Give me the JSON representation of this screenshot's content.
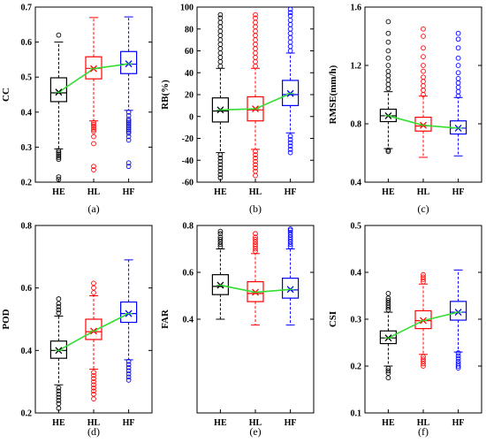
{
  "colors": {
    "HE": "#000000",
    "HL": "#ff0000",
    "HF": "#0000ff",
    "mean_line": "#33dd33"
  },
  "chart_data": [
    {
      "type": "box",
      "caption": "(a)",
      "ylabel": "CC",
      "ylim": [
        0.2,
        0.7
      ],
      "yticks": [
        "0.2",
        "0.3",
        "0.4",
        "0.5",
        "0.6",
        "0.7"
      ],
      "categories": [
        "HE",
        "HL",
        "HF"
      ],
      "means": [
        0.457,
        0.524,
        0.538
      ],
      "boxes": [
        {
          "min": 0.295,
          "q1": 0.43,
          "median": 0.455,
          "q3": 0.498,
          "max": 0.6,
          "outliers": [
            0.62,
            0.29,
            0.285,
            0.28,
            0.275,
            0.27,
            0.265,
            0.215,
            0.208
          ]
        },
        {
          "min": 0.375,
          "q1": 0.495,
          "median": 0.525,
          "q3": 0.558,
          "max": 0.67,
          "outliers": [
            0.37,
            0.365,
            0.36,
            0.355,
            0.35,
            0.345,
            0.33,
            0.31,
            0.245,
            0.235
          ]
        },
        {
          "min": 0.405,
          "q1": 0.51,
          "median": 0.537,
          "q3": 0.573,
          "max": 0.672,
          "outliers": [
            0.4,
            0.39,
            0.38,
            0.375,
            0.37,
            0.365,
            0.36,
            0.355,
            0.35,
            0.345,
            0.34,
            0.33,
            0.32,
            0.255,
            0.245
          ]
        }
      ]
    },
    {
      "type": "box",
      "caption": "(b)",
      "ylabel": "RB(%)",
      "ylim": [
        -60,
        100
      ],
      "yticks": [
        "-60",
        "-40",
        "-20",
        "0",
        "20",
        "40",
        "60",
        "80",
        "100"
      ],
      "categories": [
        "HE",
        "HL",
        "HF"
      ],
      "means": [
        6,
        7,
        21
      ],
      "boxes": [
        {
          "min": -33,
          "q1": -5,
          "median": 5,
          "q3": 17,
          "max": 44,
          "outliers": [
            46,
            50,
            54,
            58,
            62,
            66,
            70,
            74,
            78,
            82,
            86,
            90,
            93,
            -35,
            -38,
            -41,
            -44,
            -47,
            -50,
            -53,
            -56
          ]
        },
        {
          "min": -30,
          "q1": -4,
          "median": 6,
          "q3": 18,
          "max": 44,
          "outliers": [
            46,
            50,
            54,
            58,
            62,
            66,
            70,
            74,
            78,
            82,
            86,
            90,
            93,
            -32,
            -35,
            -38,
            -41,
            -44,
            -47,
            -50,
            -54
          ]
        },
        {
          "min": -15,
          "q1": 10,
          "median": 20,
          "q3": 33,
          "max": 58,
          "outliers": [
            60,
            64,
            68,
            72,
            76,
            80,
            84,
            88,
            92,
            95,
            98,
            -18,
            -21,
            -24,
            -27,
            -30,
            -33
          ]
        }
      ]
    },
    {
      "type": "box",
      "caption": "(c)",
      "ylabel": "RMSE(mm/h)",
      "ylim": [
        0.4,
        1.6
      ],
      "yticks": [
        "0.4",
        "0.8",
        "1.2",
        "1.6"
      ],
      "categories": [
        "HE",
        "HL",
        "HF"
      ],
      "means": [
        0.855,
        0.79,
        0.77
      ],
      "boxes": [
        {
          "min": 0.63,
          "q1": 0.815,
          "median": 0.855,
          "q3": 0.9,
          "max": 1.02,
          "outliers": [
            1.04,
            1.07,
            1.1,
            1.13,
            1.16,
            1.2,
            1.25,
            1.3,
            1.36,
            1.42,
            1.5,
            0.62,
            0.61
          ]
        },
        {
          "min": 0.57,
          "q1": 0.75,
          "median": 0.785,
          "q3": 0.845,
          "max": 0.99,
          "outliers": [
            1.0,
            1.03,
            1.06,
            1.09,
            1.12,
            1.16,
            1.2,
            1.26,
            1.32,
            1.4,
            1.45
          ]
        },
        {
          "min": 0.58,
          "q1": 0.73,
          "median": 0.77,
          "q3": 0.82,
          "max": 0.98,
          "outliers": [
            0.99,
            1.02,
            1.05,
            1.08,
            1.11,
            1.15,
            1.2,
            1.25,
            1.32,
            1.38,
            1.42
          ]
        }
      ]
    },
    {
      "type": "box",
      "caption": "(d)",
      "ylabel": "POD",
      "ylim": [
        0.2,
        0.8
      ],
      "yticks": [
        "0.2",
        "0.4",
        "0.6",
        "0.8"
      ],
      "categories": [
        "HE",
        "HL",
        "HF"
      ],
      "means": [
        0.4,
        0.462,
        0.518
      ],
      "boxes": [
        {
          "min": 0.29,
          "q1": 0.375,
          "median": 0.4,
          "q3": 0.43,
          "max": 0.51,
          "outliers": [
            0.52,
            0.53,
            0.54,
            0.55,
            0.565,
            0.28,
            0.27,
            0.26,
            0.25,
            0.24,
            0.23,
            0.215
          ]
        },
        {
          "min": 0.34,
          "q1": 0.435,
          "median": 0.46,
          "q3": 0.5,
          "max": 0.575,
          "outliers": [
            0.585,
            0.6,
            0.615,
            0.33,
            0.32,
            0.31,
            0.3,
            0.29,
            0.28,
            0.27,
            0.26,
            0.245
          ]
        },
        {
          "min": 0.37,
          "q1": 0.49,
          "median": 0.518,
          "q3": 0.555,
          "max": 0.69,
          "outliers": [
            0.365,
            0.355,
            0.345,
            0.335,
            0.325,
            0.315,
            0.305
          ]
        }
      ]
    },
    {
      "type": "box",
      "caption": "(e)",
      "ylabel": "FAR",
      "ylim": [
        0.0,
        0.8
      ],
      "yticks": [
        "0.4",
        "0.6",
        "0.8"
      ],
      "categories": [
        "HE",
        "HL",
        "HF"
      ],
      "means": [
        0.545,
        0.515,
        0.527
      ],
      "boxes": [
        {
          "min": 0.4,
          "q1": 0.505,
          "median": 0.54,
          "q3": 0.59,
          "max": 0.7,
          "outliers": [
            0.71,
            0.72,
            0.73,
            0.74,
            0.75,
            0.765,
            0.775
          ]
        },
        {
          "min": 0.375,
          "q1": 0.475,
          "median": 0.51,
          "q3": 0.56,
          "max": 0.68,
          "outliers": [
            0.69,
            0.7,
            0.71,
            0.72,
            0.73,
            0.74,
            0.75,
            0.765
          ]
        },
        {
          "min": 0.375,
          "q1": 0.49,
          "median": 0.525,
          "q3": 0.575,
          "max": 0.7,
          "outliers": [
            0.71,
            0.72,
            0.73,
            0.74,
            0.75,
            0.76,
            0.77,
            0.78,
            0.785
          ]
        }
      ]
    },
    {
      "type": "box",
      "caption": "(f)",
      "ylabel": "CSI",
      "ylim": [
        0.1,
        0.5
      ],
      "yticks": [
        "0.1",
        "0.2",
        "0.3",
        "0.4",
        "0.5"
      ],
      "categories": [
        "HE",
        "HL",
        "HF"
      ],
      "means": [
        0.26,
        0.297,
        0.315
      ],
      "boxes": [
        {
          "min": 0.2,
          "q1": 0.248,
          "median": 0.26,
          "q3": 0.275,
          "max": 0.315,
          "outliers": [
            0.32,
            0.325,
            0.33,
            0.335,
            0.34,
            0.345,
            0.355,
            0.195,
            0.19,
            0.185,
            0.175
          ]
        },
        {
          "min": 0.225,
          "q1": 0.28,
          "median": 0.297,
          "q3": 0.318,
          "max": 0.375,
          "outliers": [
            0.38,
            0.385,
            0.39,
            0.395,
            0.22,
            0.215,
            0.21,
            0.205,
            0.2
          ]
        },
        {
          "min": 0.23,
          "q1": 0.298,
          "median": 0.315,
          "q3": 0.338,
          "max": 0.405,
          "outliers": [
            0.228,
            0.222,
            0.216,
            0.21,
            0.205,
            0.2,
            0.196
          ]
        }
      ]
    }
  ]
}
